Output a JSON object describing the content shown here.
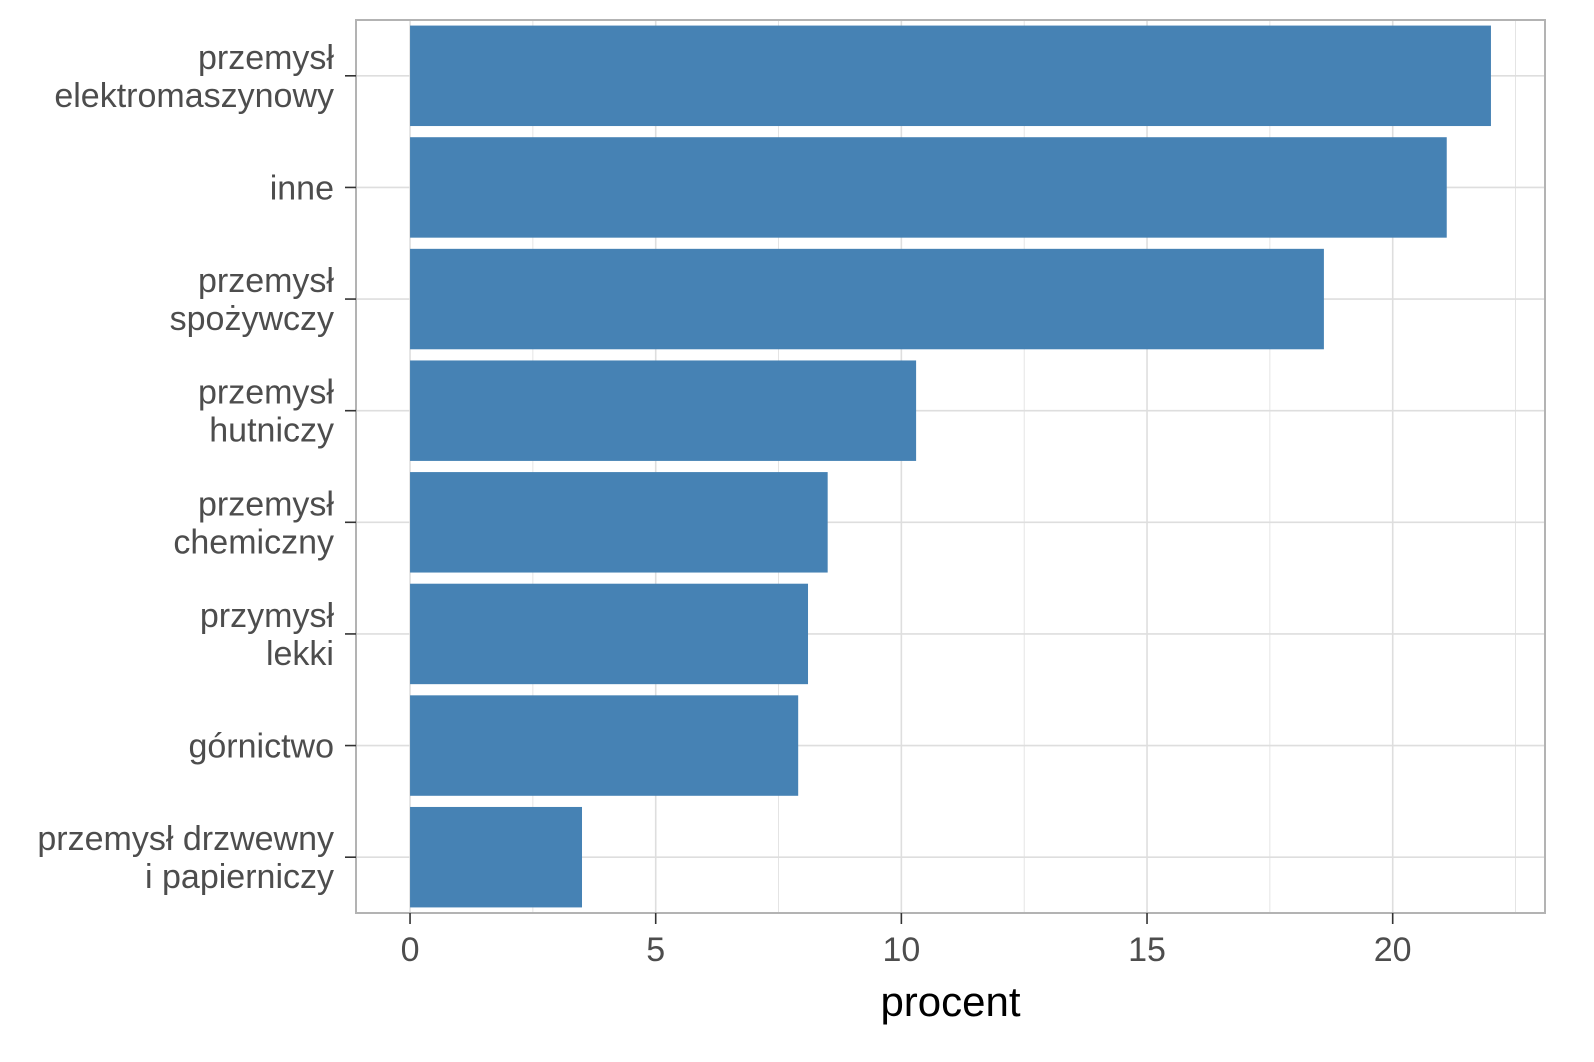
{
  "chart_data": {
    "type": "bar",
    "orientation": "horizontal",
    "categories": [
      [
        "przemysł",
        "elektromaszynowy"
      ],
      [
        "inne"
      ],
      [
        "przemysł",
        "spożywczy"
      ],
      [
        "przemysł",
        "hutniczy"
      ],
      [
        "przemysł",
        "chemiczny"
      ],
      [
        "przymysł",
        "lekki"
      ],
      [
        "górnictwo"
      ],
      [
        "przemysł drzwewny",
        "i papierniczy"
      ]
    ],
    "values": [
      22.0,
      21.1,
      18.6,
      10.3,
      8.5,
      8.1,
      7.9,
      3.5
    ],
    "xlabel": "procent",
    "ylabel": "",
    "xlim": [
      -1.1,
      23.1
    ],
    "xticks": [
      0,
      5,
      10,
      15,
      20
    ],
    "grid": true,
    "bar_color": "#4682b4",
    "grid_color": "#dedede",
    "panel_border_color": "#b3b3b3"
  }
}
